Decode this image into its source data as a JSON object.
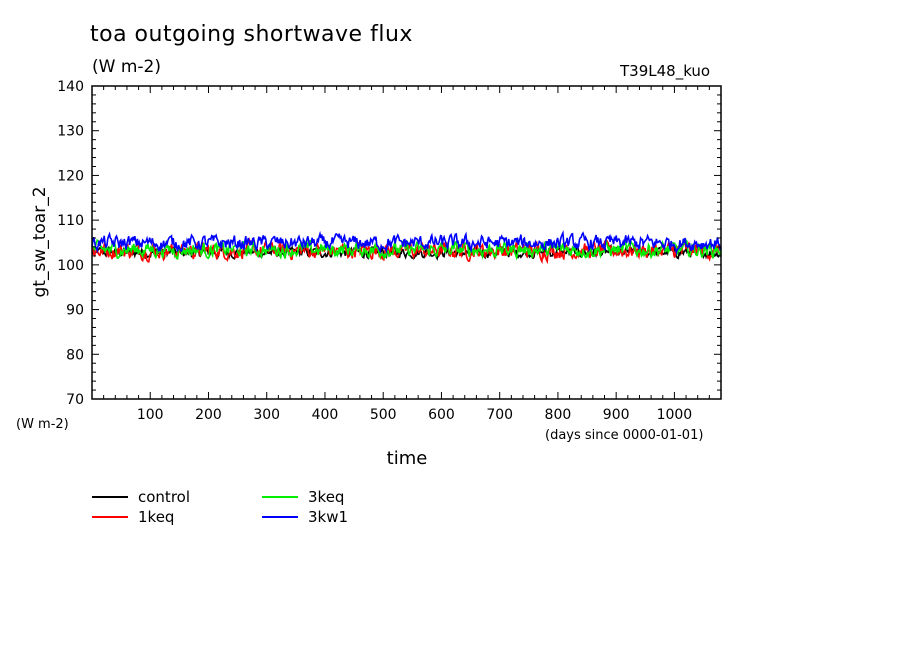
{
  "chart_data": {
    "type": "line",
    "title": "toa outgoing shortwave flux",
    "subtitle": "(W m-2)",
    "annotation": "T39L48_kuo",
    "xlabel": "time",
    "xunits": "(days since 0000-01-01)",
    "ylabel": "gt_sw_toar_2",
    "yunits": "(W m-2)",
    "xlim": [
      0,
      1080
    ],
    "ylim": [
      70,
      140
    ],
    "xticks": [
      100,
      200,
      300,
      400,
      500,
      600,
      700,
      800,
      900,
      1000
    ],
    "yticks": [
      70,
      80,
      90,
      100,
      110,
      120,
      130,
      140
    ],
    "grid": false,
    "legend_position": "bottom-left",
    "series": [
      {
        "name": "control",
        "color": "#000000",
        "mean": 102.8,
        "range": [
          100.5,
          105.0
        ]
      },
      {
        "name": "1keq",
        "color": "#ff0000",
        "mean": 103.2,
        "range": [
          99.5,
          106.5
        ]
      },
      {
        "name": "3keq",
        "color": "#00ee00",
        "mean": 103.4,
        "range": [
          100.0,
          106.5
        ]
      },
      {
        "name": "3kw1",
        "color": "#0000ff",
        "mean": 104.9,
        "range": [
          102.5,
          109.0
        ]
      }
    ]
  }
}
